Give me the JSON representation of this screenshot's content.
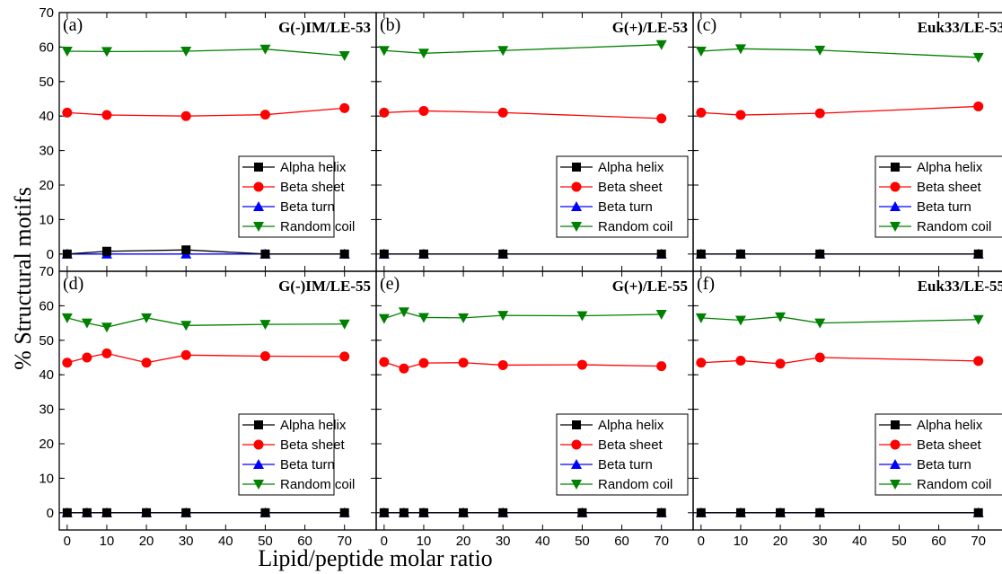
{
  "figure": {
    "xlabel": "Lipid/peptide molar ratio",
    "ylabel": "% Structural motifs"
  },
  "chart_data": [
    {
      "type": "line",
      "panel": "(a)",
      "title": "G(-)IM/LE-53",
      "legend_position": "right-middle",
      "xlim": [
        -2,
        78
      ],
      "ylim": [
        -5,
        70
      ],
      "xticks": [
        0,
        10,
        20,
        30,
        40,
        50,
        60,
        70
      ],
      "yticks": [
        0,
        10,
        20,
        30,
        40,
        50,
        60,
        70
      ],
      "series": [
        {
          "name": "Alpha helix",
          "color": "#000000",
          "marker": "square",
          "x": [
            0,
            10,
            30,
            50,
            70
          ],
          "y": [
            0,
            0.8,
            1.2,
            0,
            0
          ]
        },
        {
          "name": "Beta sheet",
          "color": "#ff0000",
          "marker": "circle",
          "x": [
            0,
            10,
            30,
            50,
            70
          ],
          "y": [
            41,
            40.3,
            40,
            40.4,
            42.3
          ]
        },
        {
          "name": "Beta turn",
          "color": "#0000ff",
          "marker": "triangle-up",
          "x": [
            0,
            10,
            30,
            50,
            70
          ],
          "y": [
            0,
            0,
            0,
            0,
            0
          ]
        },
        {
          "name": "Random coil",
          "color": "#008000",
          "marker": "triangle-down",
          "x": [
            0,
            10,
            30,
            50,
            70
          ],
          "y": [
            58.8,
            58.7,
            58.8,
            59.4,
            57.5
          ]
        }
      ]
    },
    {
      "type": "line",
      "panel": "(b)",
      "title": "G(+)/LE-53",
      "legend_position": "right-middle",
      "xlim": [
        -2,
        78
      ],
      "ylim": [
        -5,
        70
      ],
      "xticks": [
        0,
        10,
        20,
        30,
        40,
        50,
        60,
        70
      ],
      "yticks": [
        0,
        10,
        20,
        30,
        40,
        50,
        60,
        70
      ],
      "series": [
        {
          "name": "Alpha helix",
          "color": "#000000",
          "marker": "square",
          "x": [
            0,
            10,
            30,
            70
          ],
          "y": [
            0,
            0,
            0,
            0
          ]
        },
        {
          "name": "Beta sheet",
          "color": "#ff0000",
          "marker": "circle",
          "x": [
            0,
            10,
            30,
            70
          ],
          "y": [
            41,
            41.5,
            41,
            39.3
          ]
        },
        {
          "name": "Beta turn",
          "color": "#0000ff",
          "marker": "triangle-up",
          "x": [
            0,
            10,
            30,
            70
          ],
          "y": [
            0,
            0,
            0,
            0
          ]
        },
        {
          "name": "Random coil",
          "color": "#008000",
          "marker": "triangle-down",
          "x": [
            0,
            10,
            30,
            70
          ],
          "y": [
            59,
            58.2,
            59,
            60.7
          ]
        }
      ]
    },
    {
      "type": "line",
      "panel": "(c)",
      "title": "Euk33/LE-53",
      "legend_position": "right-middle",
      "xlim": [
        -2,
        78
      ],
      "ylim": [
        -5,
        70
      ],
      "xticks": [
        0,
        10,
        20,
        30,
        40,
        50,
        60,
        70
      ],
      "yticks": [
        0,
        10,
        20,
        30,
        40,
        50,
        60,
        70
      ],
      "series": [
        {
          "name": "Alpha helix",
          "color": "#000000",
          "marker": "square",
          "x": [
            0,
            10,
            30,
            70
          ],
          "y": [
            0,
            0,
            0,
            0
          ]
        },
        {
          "name": "Beta sheet",
          "color": "#ff0000",
          "marker": "circle",
          "x": [
            0,
            10,
            30,
            70
          ],
          "y": [
            41,
            40.3,
            40.8,
            42.8
          ]
        },
        {
          "name": "Beta turn",
          "color": "#0000ff",
          "marker": "triangle-up",
          "x": [
            0,
            10,
            30,
            70
          ],
          "y": [
            0,
            0,
            0,
            0
          ]
        },
        {
          "name": "Random coil",
          "color": "#008000",
          "marker": "triangle-down",
          "x": [
            0,
            10,
            30,
            70
          ],
          "y": [
            58.8,
            59.5,
            59.1,
            57
          ]
        }
      ]
    },
    {
      "type": "line",
      "panel": "(d)",
      "title": "G(-)IM/LE-55",
      "legend_position": "right-middle",
      "xlim": [
        -2,
        78
      ],
      "ylim": [
        -5,
        70
      ],
      "xticks": [
        0,
        10,
        20,
        30,
        40,
        50,
        60,
        70
      ],
      "yticks": [
        0,
        10,
        20,
        30,
        40,
        50,
        60,
        70
      ],
      "series": [
        {
          "name": "Alpha helix",
          "color": "#000000",
          "marker": "square",
          "x": [
            0,
            5,
            10,
            20,
            30,
            50,
            70
          ],
          "y": [
            0,
            0,
            0,
            0,
            0,
            0,
            0
          ]
        },
        {
          "name": "Beta sheet",
          "color": "#ff0000",
          "marker": "circle",
          "x": [
            0,
            5,
            10,
            20,
            30,
            50,
            70
          ],
          "y": [
            43.5,
            45,
            46.2,
            43.5,
            45.7,
            45.4,
            45.3
          ]
        },
        {
          "name": "Beta turn",
          "color": "#0000ff",
          "marker": "triangle-up",
          "x": [
            0,
            5,
            10,
            20,
            30,
            50,
            70
          ],
          "y": [
            0,
            0,
            0,
            0,
            0,
            0,
            0
          ]
        },
        {
          "name": "Random coil",
          "color": "#008000",
          "marker": "triangle-down",
          "x": [
            0,
            5,
            10,
            20,
            30,
            50,
            70
          ],
          "y": [
            56.5,
            55,
            53.8,
            56.5,
            54.3,
            54.6,
            54.7
          ]
        }
      ]
    },
    {
      "type": "line",
      "panel": "(e)",
      "title": "G(+)/LE-55",
      "legend_position": "right-middle",
      "xlim": [
        -2,
        78
      ],
      "ylim": [
        -5,
        70
      ],
      "xticks": [
        0,
        10,
        20,
        30,
        40,
        50,
        60,
        70
      ],
      "yticks": [
        0,
        10,
        20,
        30,
        40,
        50,
        60,
        70
      ],
      "series": [
        {
          "name": "Alpha helix",
          "color": "#000000",
          "marker": "square",
          "x": [
            0,
            5,
            10,
            20,
            30,
            50,
            70
          ],
          "y": [
            0,
            0,
            0,
            0,
            0,
            0,
            0
          ]
        },
        {
          "name": "Beta sheet",
          "color": "#ff0000",
          "marker": "circle",
          "x": [
            0,
            5,
            10,
            20,
            30,
            50,
            70
          ],
          "y": [
            43.7,
            41.8,
            43.4,
            43.5,
            42.8,
            42.9,
            42.5
          ]
        },
        {
          "name": "Beta turn",
          "color": "#0000ff",
          "marker": "triangle-up",
          "x": [
            0,
            5,
            10,
            20,
            30,
            50,
            70
          ],
          "y": [
            0,
            0,
            0,
            0,
            0,
            0,
            0
          ]
        },
        {
          "name": "Random coil",
          "color": "#008000",
          "marker": "triangle-down",
          "x": [
            0,
            5,
            10,
            20,
            30,
            50,
            70
          ],
          "y": [
            56.3,
            58.2,
            56.6,
            56.5,
            57.2,
            57.1,
            57.5
          ]
        }
      ]
    },
    {
      "type": "line",
      "panel": "(f)",
      "title": "Euk33/LE-55",
      "legend_position": "right-middle",
      "xlim": [
        -2,
        78
      ],
      "ylim": [
        -5,
        70
      ],
      "xticks": [
        0,
        10,
        20,
        30,
        40,
        50,
        60,
        70
      ],
      "yticks": [
        0,
        10,
        20,
        30,
        40,
        50,
        60,
        70
      ],
      "series": [
        {
          "name": "Alpha helix",
          "color": "#000000",
          "marker": "square",
          "x": [
            0,
            10,
            20,
            30,
            70
          ],
          "y": [
            0,
            0,
            0,
            0,
            0
          ]
        },
        {
          "name": "Beta sheet",
          "color": "#ff0000",
          "marker": "circle",
          "x": [
            0,
            10,
            20,
            30,
            70
          ],
          "y": [
            43.5,
            44.1,
            43.2,
            45,
            44
          ]
        },
        {
          "name": "Beta turn",
          "color": "#0000ff",
          "marker": "triangle-up",
          "x": [
            0,
            10,
            20,
            30,
            70
          ],
          "y": [
            0,
            0,
            0,
            0,
            0
          ]
        },
        {
          "name": "Random coil",
          "color": "#008000",
          "marker": "triangle-down",
          "x": [
            0,
            10,
            20,
            30,
            70
          ],
          "y": [
            56.5,
            55.8,
            56.8,
            55,
            56
          ]
        }
      ]
    }
  ]
}
